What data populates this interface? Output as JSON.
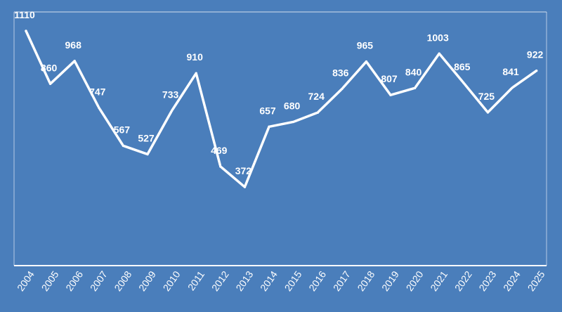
{
  "chart_data": {
    "type": "line",
    "title": "",
    "xlabel": "",
    "ylabel": "",
    "categories": [
      "2004",
      "2005",
      "2006",
      "2007",
      "2008",
      "2009",
      "2010",
      "2011",
      "2012",
      "2013",
      "2014",
      "2015",
      "2016",
      "2017",
      "2018",
      "2019",
      "2020",
      "2021",
      "2022",
      "2023",
      "2024",
      "2025"
    ],
    "series": [
      {
        "values": [
          1110,
          860,
          968,
          747,
          567,
          527,
          733,
          910,
          469,
          372,
          657,
          680,
          724,
          836,
          965,
          807,
          840,
          1003,
          865,
          725,
          841,
          922
        ]
      }
    ],
    "ylim": [
      0,
      1200
    ],
    "grid": false,
    "legend": "none",
    "data_labels": true,
    "drop_lines": true,
    "colors": {
      "background": "#4a7ebb",
      "line": "#ffffff",
      "text": "#ffffff"
    }
  }
}
